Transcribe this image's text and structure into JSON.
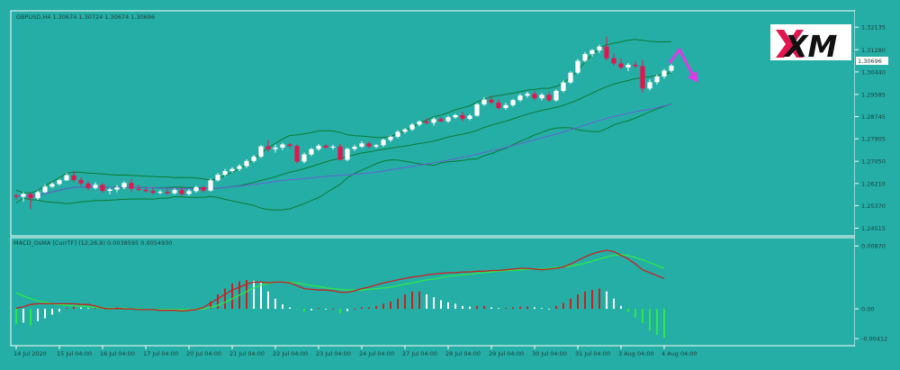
{
  "chart_data": [
    {
      "type": "candlestick",
      "title": "GBPUSD,H4  1.30674 1.30724 1.30674 1.30696",
      "last_price": "1.30696",
      "y_ticks": [
        "1.32135",
        "1.31280",
        "1.30440",
        "1.29585",
        "1.28745",
        "1.27905",
        "1.27050",
        "1.26210",
        "1.25370",
        "1.24515"
      ],
      "x_ticks": [
        "14 Jul 2020",
        "15 Jul 04:00",
        "16 Jul 04:00",
        "17 Jul 04:00",
        "20 Jul 04:00",
        "21 Jul 04:00",
        "22 Jul 04:00",
        "23 Jul 04:00",
        "24 Jul 04:00",
        "27 Jul 04:00",
        "28 Jul 04:00",
        "29 Jul 04:00",
        "30 Jul 04:00",
        "31 Jul 04:00",
        "3 Aug 04:00",
        "4 Aug 04:00"
      ],
      "ylim": [
        1.2436,
        1.3262
      ],
      "overlays": [
        "Bollinger Bands",
        "Moving Average"
      ],
      "forecast_arrow": "down",
      "colors": {
        "background": "#24aea6",
        "bull": "#ffffff",
        "bear": "#e2164e",
        "band": "#0c7a32",
        "ma": "#6a5fd3",
        "arrow": "#e03ae6"
      },
      "candles": [
        [
          1.2575,
          1.2582,
          1.2561,
          1.2571
        ],
        [
          1.2571,
          1.2588,
          1.2553,
          1.2581
        ],
        [
          1.2581,
          1.2586,
          1.2524,
          1.2565
        ],
        [
          1.2565,
          1.2594,
          1.2559,
          1.2588
        ],
        [
          1.2588,
          1.2618,
          1.2584,
          1.2609
        ],
        [
          1.2609,
          1.2626,
          1.2604,
          1.2619
        ],
        [
          1.2619,
          1.2639,
          1.2614,
          1.2633
        ],
        [
          1.2633,
          1.2661,
          1.263,
          1.2652
        ],
        [
          1.2652,
          1.267,
          1.2626,
          1.2634
        ],
        [
          1.2634,
          1.2644,
          1.2612,
          1.2621
        ],
        [
          1.2621,
          1.2628,
          1.2595,
          1.2604
        ],
        [
          1.2604,
          1.2625,
          1.2598,
          1.2616
        ],
        [
          1.2616,
          1.2623,
          1.2586,
          1.2593
        ],
        [
          1.2593,
          1.2605,
          1.258,
          1.2598
        ],
        [
          1.2598,
          1.2615,
          1.2588,
          1.2606
        ],
        [
          1.2606,
          1.2629,
          1.2599,
          1.2623
        ],
        [
          1.2623,
          1.2638,
          1.2589,
          1.2601
        ],
        [
          1.2601,
          1.2615,
          1.2592,
          1.2597
        ],
        [
          1.2597,
          1.2607,
          1.2586,
          1.2592
        ],
        [
          1.2592,
          1.2606,
          1.2579,
          1.2586
        ],
        [
          1.2586,
          1.2596,
          1.258,
          1.2589
        ],
        [
          1.2589,
          1.2601,
          1.2578,
          1.2584
        ],
        [
          1.2584,
          1.2603,
          1.2579,
          1.2596
        ],
        [
          1.2596,
          1.2609,
          1.2574,
          1.2581
        ],
        [
          1.2581,
          1.26,
          1.2575,
          1.2592
        ],
        [
          1.2592,
          1.2612,
          1.2586,
          1.2607
        ],
        [
          1.2607,
          1.2612,
          1.2587,
          1.2594
        ],
        [
          1.2594,
          1.264,
          1.259,
          1.2633
        ],
        [
          1.2633,
          1.2661,
          1.2628,
          1.2654
        ],
        [
          1.2654,
          1.2676,
          1.2648,
          1.2668
        ],
        [
          1.2668,
          1.2683,
          1.2662,
          1.2676
        ],
        [
          1.2676,
          1.2694,
          1.2668,
          1.2687
        ],
        [
          1.2687,
          1.2713,
          1.2681,
          1.2706
        ],
        [
          1.2706,
          1.2729,
          1.27,
          1.2723
        ],
        [
          1.2723,
          1.2766,
          1.2717,
          1.2762
        ],
        [
          1.2762,
          1.2786,
          1.2741,
          1.2751
        ],
        [
          1.2751,
          1.2768,
          1.2738,
          1.2757
        ],
        [
          1.2757,
          1.2775,
          1.2748,
          1.2769
        ],
        [
          1.2769,
          1.2776,
          1.2755,
          1.2763
        ],
        [
          1.2763,
          1.2769,
          1.2697,
          1.2704
        ],
        [
          1.2704,
          1.2738,
          1.2698,
          1.2731
        ],
        [
          1.2731,
          1.2756,
          1.2725,
          1.2751
        ],
        [
          1.2751,
          1.2771,
          1.2745,
          1.2764
        ],
        [
          1.2764,
          1.277,
          1.2752,
          1.2757
        ],
        [
          1.2757,
          1.2768,
          1.2749,
          1.2761
        ],
        [
          1.2761,
          1.2771,
          1.2708,
          1.2711
        ],
        [
          1.2711,
          1.2756,
          1.2705,
          1.2752
        ],
        [
          1.2752,
          1.2768,
          1.2745,
          1.276
        ],
        [
          1.276,
          1.2781,
          1.2756,
          1.2773
        ],
        [
          1.2773,
          1.278,
          1.2754,
          1.2761
        ],
        [
          1.2761,
          1.2771,
          1.2755,
          1.2766
        ],
        [
          1.2766,
          1.2791,
          1.276,
          1.2786
        ],
        [
          1.2786,
          1.2803,
          1.2779,
          1.2798
        ],
        [
          1.2798,
          1.2823,
          1.2792,
          1.2817
        ],
        [
          1.2817,
          1.2831,
          1.281,
          1.2826
        ],
        [
          1.2826,
          1.285,
          1.282,
          1.2844
        ],
        [
          1.2844,
          1.286,
          1.2838,
          1.2856
        ],
        [
          1.2856,
          1.2868,
          1.2844,
          1.2851
        ],
        [
          1.2851,
          1.2872,
          1.284,
          1.2865
        ],
        [
          1.2865,
          1.2873,
          1.2853,
          1.2857
        ],
        [
          1.2857,
          1.2878,
          1.2851,
          1.2872
        ],
        [
          1.2872,
          1.2885,
          1.2866,
          1.288
        ],
        [
          1.288,
          1.2893,
          1.2857,
          1.2866
        ],
        [
          1.2866,
          1.2884,
          1.2861,
          1.2878
        ],
        [
          1.2878,
          1.2926,
          1.2874,
          1.2921
        ],
        [
          1.2921,
          1.2948,
          1.2915,
          1.2939
        ],
        [
          1.2939,
          1.2955,
          1.2922,
          1.2928
        ],
        [
          1.2928,
          1.294,
          1.29,
          1.2907
        ],
        [
          1.2907,
          1.2927,
          1.29,
          1.2918
        ],
        [
          1.2918,
          1.2942,
          1.2912,
          1.2937
        ],
        [
          1.2937,
          1.2961,
          1.2931,
          1.2954
        ],
        [
          1.2954,
          1.2968,
          1.2946,
          1.2961
        ],
        [
          1.2961,
          1.2972,
          1.2937,
          1.2944
        ],
        [
          1.2944,
          1.2963,
          1.2936,
          1.2957
        ],
        [
          1.2957,
          1.2968,
          1.2931,
          1.2936
        ],
        [
          1.2936,
          1.2978,
          1.2931,
          1.2972
        ],
        [
          1.2972,
          1.3011,
          1.2966,
          1.3004
        ],
        [
          1.3004,
          1.3047,
          1.2999,
          1.3041
        ],
        [
          1.3041,
          1.3093,
          1.3035,
          1.3086
        ],
        [
          1.3086,
          1.3119,
          1.308,
          1.3112
        ],
        [
          1.3112,
          1.3131,
          1.3102,
          1.3126
        ],
        [
          1.3126,
          1.3147,
          1.3116,
          1.314
        ],
        [
          1.314,
          1.3178,
          1.3088,
          1.3096
        ],
        [
          1.3096,
          1.3114,
          1.3068,
          1.3076
        ],
        [
          1.3076,
          1.3095,
          1.3054,
          1.3061
        ],
        [
          1.3061,
          1.3078,
          1.3047,
          1.3071
        ],
        [
          1.3071,
          1.3084,
          1.3058,
          1.3066
        ],
        [
          1.3066,
          1.3088,
          1.2966,
          1.2981
        ],
        [
          1.2981,
          1.3016,
          1.2973,
          1.3005
        ],
        [
          1.3005,
          1.3034,
          1.2996,
          1.3027
        ],
        [
          1.3027,
          1.3055,
          1.3019,
          1.3049
        ],
        [
          1.3049,
          1.3073,
          1.3041,
          1.3067
        ]
      ]
    },
    {
      "type": "bar+line",
      "title": "MACD_OsMA [CurrTF] (12,26,9) 0.0038595 0.0054930",
      "y_ticks": [
        "0.00870",
        "0.00",
        "-0.00412"
      ],
      "ylim": [
        -0.0046,
        0.0091
      ],
      "colors": {
        "macd_line": "#cc1f1f",
        "signal_line": "#2ee84a",
        "hist_pos": "#ffffff",
        "hist_pos_up": "#cc1f1f",
        "hist_neg": "#ffffff",
        "hist_neg_down": "#2ee84a"
      },
      "histogram": [
        -0.0021,
        -0.0019,
        -0.0023,
        -0.0017,
        -0.0013,
        -0.0008,
        -0.0004,
        0.0001,
        0.0003,
        0.0002,
        0.0001,
        0.0001,
        -0.0001,
        -0.0001,
        0.0,
        0.0,
        -0.0001,
        -0.0001,
        -0.0002,
        -0.0002,
        -0.0002,
        -0.0002,
        -0.0002,
        -0.0002,
        -0.0002,
        -0.0001,
        -0.0001,
        0.001,
        0.002,
        0.0028,
        0.0035,
        0.0038,
        0.004,
        0.0039,
        0.0036,
        0.0024,
        0.0014,
        0.0006,
        0.0002,
        -0.0001,
        -0.0004,
        -0.0002,
        0.0001,
        0.0,
        0.0,
        -0.0006,
        -0.0003,
        0.0,
        0.0002,
        0.0002,
        0.0004,
        0.0007,
        0.001,
        0.0014,
        0.002,
        0.0024,
        0.0024,
        0.002,
        0.0016,
        0.0012,
        0.0009,
        0.0007,
        0.0004,
        0.0003,
        0.0004,
        0.0004,
        0.0002,
        0.0001,
        0.0001,
        0.0002,
        0.0003,
        0.0003,
        0.0002,
        0.0001,
        0.0,
        0.0004,
        0.0008,
        0.0014,
        0.002,
        0.0024,
        0.0026,
        0.0028,
        0.0024,
        0.0014,
        0.0004,
        -0.0004,
        -0.0012,
        -0.002,
        -0.003,
        -0.0036,
        -0.004
      ],
      "macd": [
        0.0001,
        0.0003,
        0.0006,
        0.0007,
        0.0007,
        0.0007,
        0.0007,
        0.0007,
        0.0007,
        0.0006,
        0.0006,
        0.0004,
        0.0001,
        0.0,
        0.0001,
        0.0,
        0.0,
        -0.0001,
        -0.0001,
        -0.0001,
        -0.0002,
        -0.0002,
        -0.0002,
        -0.0003,
        -0.0002,
        -0.0001,
        0.0002,
        0.0008,
        0.0014,
        0.002,
        0.0026,
        0.003,
        0.0034,
        0.0037,
        0.0037,
        0.0036,
        0.0037,
        0.0037,
        0.0036,
        0.0032,
        0.0028,
        0.0027,
        0.0026,
        0.0026,
        0.0025,
        0.0023,
        0.0023,
        0.0025,
        0.0028,
        0.003,
        0.0033,
        0.0036,
        0.0038,
        0.004,
        0.0042,
        0.0044,
        0.0045,
        0.0047,
        0.0048,
        0.0049,
        0.005,
        0.005,
        0.0051,
        0.0051,
        0.0052,
        0.0052,
        0.0053,
        0.0053,
        0.0054,
        0.0055,
        0.0056,
        0.0056,
        0.0055,
        0.0054,
        0.0055,
        0.0056,
        0.0058,
        0.0062,
        0.0067,
        0.0072,
        0.0076,
        0.0079,
        0.0081,
        0.0079,
        0.0074,
        0.0069,
        0.0062,
        0.0054,
        0.005,
        0.0046,
        0.0042
      ],
      "signal": [
        0.0022,
        0.0018,
        0.0014,
        0.0011,
        0.0009,
        0.0007,
        0.0006,
        0.0005,
        0.0004,
        0.0004,
        0.0003,
        0.0002,
        0.0001,
        0.0001,
        0.0001,
        0.0001,
        0.0,
        0.0,
        -0.0001,
        -0.0001,
        -0.0001,
        -0.0001,
        -0.0001,
        -0.0001,
        -0.0001,
        -0.0001,
        0.0,
        0.0002,
        0.0005,
        0.0009,
        0.0014,
        0.0019,
        0.0024,
        0.0029,
        0.0033,
        0.0035,
        0.0037,
        0.0037,
        0.0037,
        0.0036,
        0.0034,
        0.0032,
        0.0031,
        0.0029,
        0.0028,
        0.0027,
        0.0026,
        0.0026,
        0.0026,
        0.0027,
        0.0028,
        0.0029,
        0.003,
        0.0032,
        0.0034,
        0.0036,
        0.0038,
        0.004,
        0.0041,
        0.0043,
        0.0045,
        0.0046,
        0.0047,
        0.0048,
        0.0049,
        0.005,
        0.0051,
        0.0052,
        0.0053,
        0.0053,
        0.0054,
        0.0055,
        0.0055,
        0.0055,
        0.0056,
        0.0057,
        0.0058,
        0.0059,
        0.0061,
        0.0063,
        0.0066,
        0.0069,
        0.0072,
        0.0074,
        0.0075,
        0.0074,
        0.0071,
        0.0068,
        0.0064,
        0.006,
        0.0056
      ]
    }
  ],
  "logo": {
    "text": "XM"
  }
}
